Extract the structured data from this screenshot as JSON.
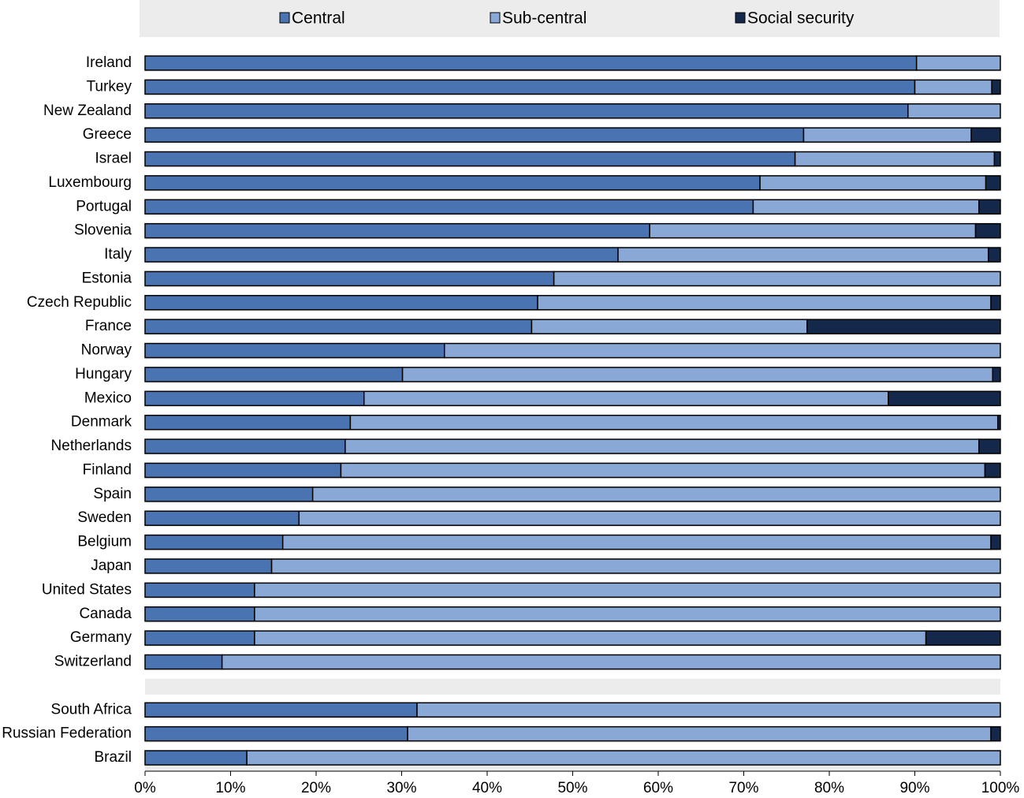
{
  "chart_data": {
    "type": "stacked-barh",
    "categories": [
      "Ireland",
      "Turkey",
      "New Zealand",
      "Greece",
      "Israel",
      "Luxembourg",
      "Portugal",
      "Slovenia",
      "Italy",
      "Estonia",
      "Czech Republic",
      "France",
      "Norway",
      "Hungary",
      "Mexico",
      "Denmark",
      "Netherlands",
      "Finland",
      "Spain",
      "Sweden",
      "Belgium",
      "Japan",
      "United States",
      "Canada",
      "Germany",
      "Switzerland",
      null,
      "South Africa",
      "Russian Federation",
      "Brazil"
    ],
    "series": [
      {
        "name": "Central",
        "color": "#4a73b2",
        "values": [
          90.2,
          90.0,
          89.2,
          77.0,
          76.0,
          71.9,
          71.1,
          59.0,
          55.3,
          47.8,
          45.9,
          45.2,
          35.0,
          30.1,
          25.6,
          24.0,
          23.4,
          22.9,
          19.6,
          18.0,
          16.1,
          14.8,
          12.8,
          12.8,
          12.8,
          9.0,
          null,
          31.8,
          30.7,
          11.9
        ]
      },
      {
        "name": "Sub-central",
        "color": "#8aa8d5",
        "values": [
          9.8,
          9.0,
          10.8,
          19.6,
          23.3,
          26.4,
          26.4,
          38.1,
          43.3,
          52.2,
          53.0,
          32.2,
          65.0,
          69.0,
          61.3,
          75.7,
          74.1,
          75.3,
          80.4,
          82.0,
          82.8,
          85.2,
          87.2,
          87.2,
          78.5,
          91.0,
          null,
          68.2,
          68.2,
          88.1
        ]
      },
      {
        "name": "Social security",
        "color": "#13284a",
        "values": [
          0,
          1.0,
          0,
          3.4,
          0.7,
          1.7,
          2.5,
          2.9,
          1.4,
          0,
          1.1,
          22.6,
          0,
          0.9,
          13.1,
          0.3,
          2.5,
          1.8,
          0,
          0,
          1.1,
          0,
          0,
          0,
          8.7,
          0,
          null,
          0,
          1.1,
          0
        ]
      }
    ],
    "xlim": [
      0,
      100
    ],
    "xticks": [
      {
        "value": 0,
        "label": "0%"
      },
      {
        "value": 10,
        "label": "10%"
      },
      {
        "value": 20,
        "label": "20%"
      },
      {
        "value": 30,
        "label": "30%"
      },
      {
        "value": 40,
        "label": "40%"
      },
      {
        "value": 50,
        "label": "50%"
      },
      {
        "value": 60,
        "label": "60%"
      },
      {
        "value": 70,
        "label": "70%"
      },
      {
        "value": 80,
        "label": "80%"
      },
      {
        "value": 90,
        "label": "90%"
      },
      {
        "value": 100,
        "label": "100%"
      }
    ],
    "legend": "top"
  }
}
